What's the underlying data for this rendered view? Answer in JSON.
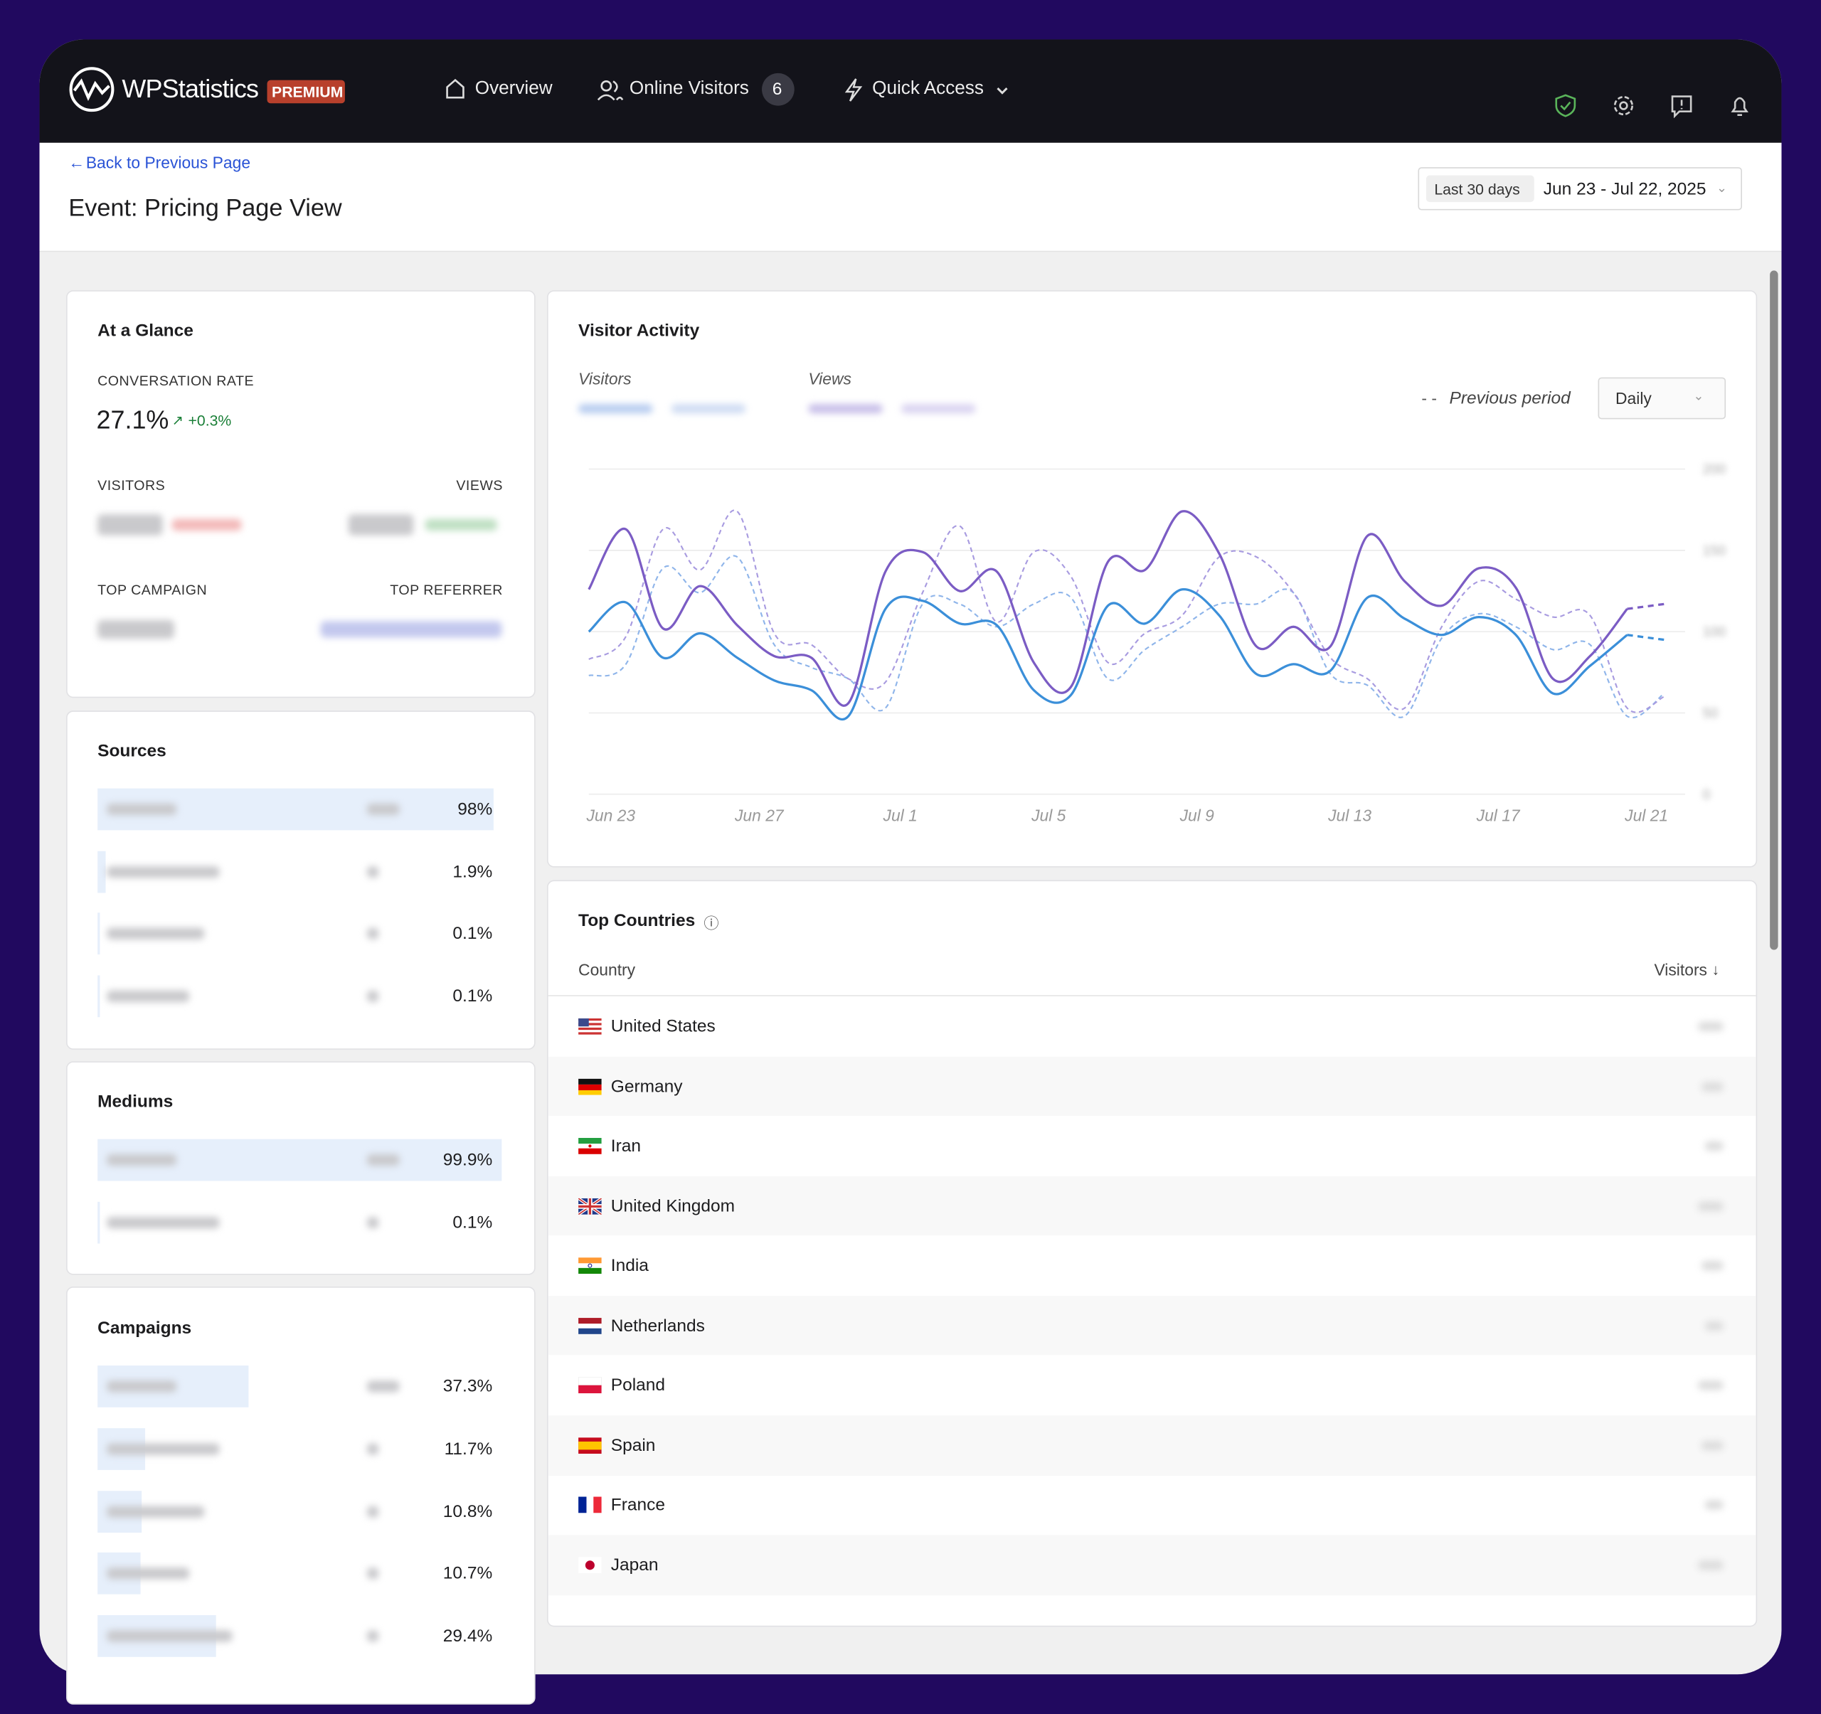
{
  "header": {
    "logo": "WPStatistics",
    "badge": "PREMIUM",
    "nav": [
      {
        "label": "Overview"
      },
      {
        "label": "Online Visitors",
        "count": "6"
      },
      {
        "label": "Quick Access"
      }
    ]
  },
  "page": {
    "back_link": "Back to Previous Page",
    "title": "Event: Pricing Page View",
    "date_preset": "Last 30 days",
    "date_range": "Jun 23 - Jul 22, 2025"
  },
  "at_a_glance": {
    "title": "At a Glance",
    "conversion_label": "CONVERSATION RATE",
    "conversion_value": "27.1%",
    "conversion_change": "+0.3%",
    "visitors_label": "VISITORS",
    "views_label": "VIEWS",
    "top_campaign_label": "TOP CAMPAIGN",
    "top_referrer_label": "TOP REFERRER"
  },
  "sources": {
    "title": "Sources",
    "rows": [
      {
        "share": "98%"
      },
      {
        "share": "1.9%"
      },
      {
        "share": "0.1%"
      },
      {
        "share": "0.1%"
      }
    ]
  },
  "mediums": {
    "title": "Mediums",
    "rows": [
      {
        "share": "99.9%"
      },
      {
        "share": "0.1%"
      }
    ]
  },
  "campaigns": {
    "title": "Campaigns",
    "rows": [
      {
        "share": "37.3%"
      },
      {
        "share": "11.7%"
      },
      {
        "share": "10.8%"
      },
      {
        "share": "10.7%"
      },
      {
        "share": "29.4%"
      }
    ]
  },
  "visitor_activity": {
    "title": "Visitor Activity",
    "previous_label": "Previous period",
    "interval": "Daily",
    "chart_data": {
      "type": "line",
      "categories": [
        "Jun 23",
        null,
        null,
        null,
        "Jun 27",
        null,
        null,
        null,
        "Jul 1",
        null,
        null,
        null,
        "Jul 5",
        null,
        null,
        null,
        "Jul 9",
        null,
        null,
        null,
        "Jul 13",
        null,
        null,
        null,
        "Jul 17",
        null,
        null,
        null,
        "Jul 21",
        null
      ],
      "series": [
        {
          "name": "Visitors",
          "color": "#3b8fd9",
          "values": [
            100,
            118,
            84,
            99,
            84,
            70,
            64,
            48,
            114,
            119,
            105,
            104,
            64,
            61,
            116,
            105,
            126,
            110,
            74,
            80,
            76,
            121,
            108,
            98,
            109,
            98,
            62,
            79,
            98,
            95
          ]
        },
        {
          "name": "Views",
          "color": "#7b5cc4",
          "values": [
            126,
            163,
            102,
            128,
            104,
            85,
            84,
            56,
            137,
            149,
            125,
            137,
            81,
            66,
            143,
            138,
            174,
            148,
            91,
            103,
            91,
            159,
            131,
            116,
            139,
            127,
            71,
            85,
            114,
            117
          ]
        },
        {
          "color": "#8fb5ea",
          "dashed": true,
          "values": [
            73,
            80,
            139,
            124,
            146,
            92,
            78,
            71,
            53,
            117,
            117,
            103,
            117,
            121,
            71,
            89,
            103,
            117,
            117,
            124,
            74,
            67,
            48,
            96,
            111,
            103,
            89,
            92,
            48,
            62
          ]
        },
        {
          "color": "#a89be0",
          "dashed": true,
          "values": [
            83,
            97,
            163,
            138,
            174,
            99,
            92,
            71,
            69,
            124,
            165,
            106,
            149,
            134,
            81,
            99,
            110,
            146,
            146,
            124,
            84,
            71,
            53,
            103,
            131,
            120,
            109,
            110,
            53,
            60
          ]
        }
      ],
      "ylim": [
        0,
        200
      ],
      "yticks": [
        0,
        50,
        100,
        150,
        200
      ],
      "grid": true
    }
  },
  "top_countries": {
    "title": "Top Countries",
    "columns": [
      "Country",
      "Visitors"
    ],
    "rows": [
      "United States",
      "Germany",
      "Iran",
      "United Kingdom",
      "India",
      "Netherlands",
      "Poland",
      "Spain",
      "France",
      "Japan"
    ]
  }
}
